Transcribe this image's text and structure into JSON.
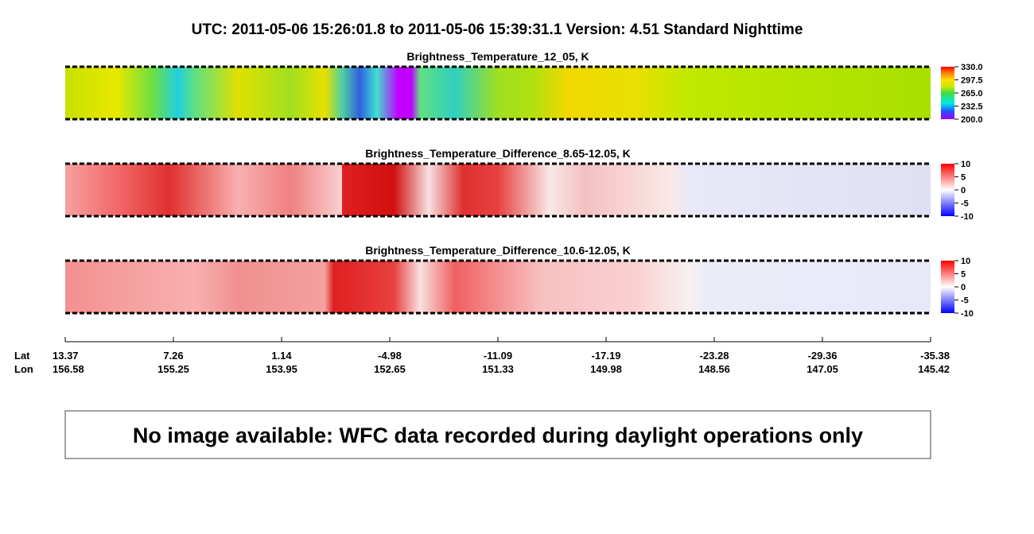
{
  "header": {
    "title": "UTC:  2011-05-06   15:26:01.8  to  2011-05-06   15:39:31.1    Version: 4.51  Standard Nighttime"
  },
  "panels": [
    {
      "title": "Brightness_Temperature_12_05, K",
      "lim": [
        200,
        330
      ],
      "ticks": [
        {
          "value": 330,
          "label": "330.0"
        },
        {
          "value": 297.5,
          "label": "297.5"
        },
        {
          "value": 265,
          "label": "265.0"
        },
        {
          "value": 232.5,
          "label": "232.5"
        },
        {
          "value": 200,
          "label": "200.0"
        }
      ]
    },
    {
      "title": "Brightness_Temperature_Difference_8.65-12.05, K",
      "lim": [
        -10,
        10
      ],
      "ticks": [
        10,
        5,
        0,
        -5,
        -10
      ]
    },
    {
      "title": "Brightness_Temperature_Difference_10.6-12.05, K",
      "lim": [
        -10,
        10
      ],
      "ticks": [
        10,
        5,
        0,
        -5,
        -10
      ]
    }
  ],
  "axis": {
    "lat_label": "Lat",
    "lon_label": "Lon",
    "lat": [
      13.37,
      7.26,
      1.14,
      -4.98,
      -11.09,
      -17.19,
      -23.28,
      -29.36,
      -35.38
    ],
    "lon": [
      156.58,
      155.25,
      153.95,
      152.65,
      151.33,
      149.98,
      148.56,
      147.05,
      145.42
    ]
  },
  "message": "No image available: WFC data recorded during daylight operations only"
}
